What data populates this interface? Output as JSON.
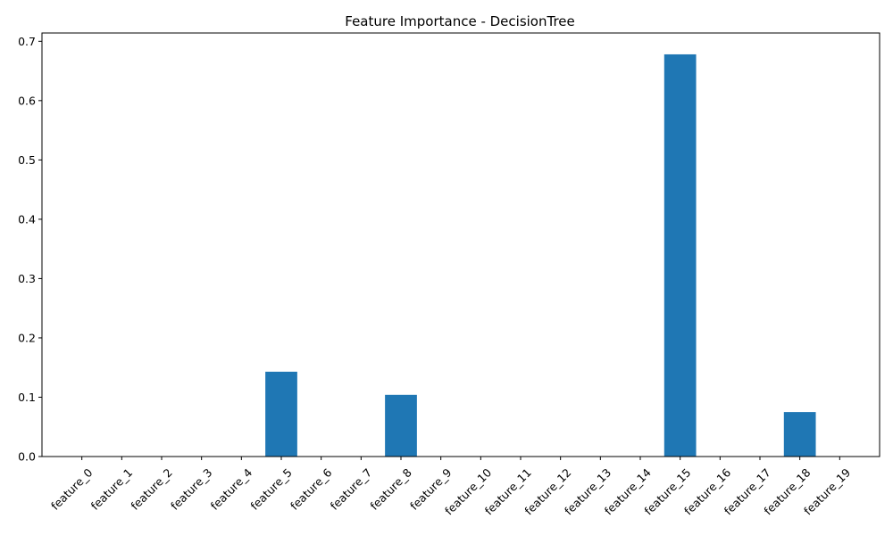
{
  "chart_data": {
    "type": "bar",
    "title": "Feature Importance - DecisionTree",
    "xlabel": "",
    "ylabel": "",
    "categories": [
      "feature_0",
      "feature_1",
      "feature_2",
      "feature_3",
      "feature_4",
      "feature_5",
      "feature_6",
      "feature_7",
      "feature_8",
      "feature_9",
      "feature_10",
      "feature_11",
      "feature_12",
      "feature_13",
      "feature_14",
      "feature_15",
      "feature_16",
      "feature_17",
      "feature_18",
      "feature_19"
    ],
    "values": [
      0,
      0,
      0,
      0,
      0,
      0.143,
      0,
      0,
      0.104,
      0,
      0,
      0,
      0,
      0,
      0,
      0.678,
      0,
      0,
      0.075,
      0
    ],
    "ylim": [
      0,
      0.714
    ],
    "yticks": [
      0.0,
      0.1,
      0.2,
      0.3,
      0.4,
      0.5,
      0.6,
      0.7
    ],
    "ytick_labels": [
      "0.0",
      "0.1",
      "0.2",
      "0.3",
      "0.4",
      "0.5",
      "0.6",
      "0.7"
    ],
    "grid": false,
    "bar_color": "#1f77b4",
    "xtick_rotation": 45
  }
}
